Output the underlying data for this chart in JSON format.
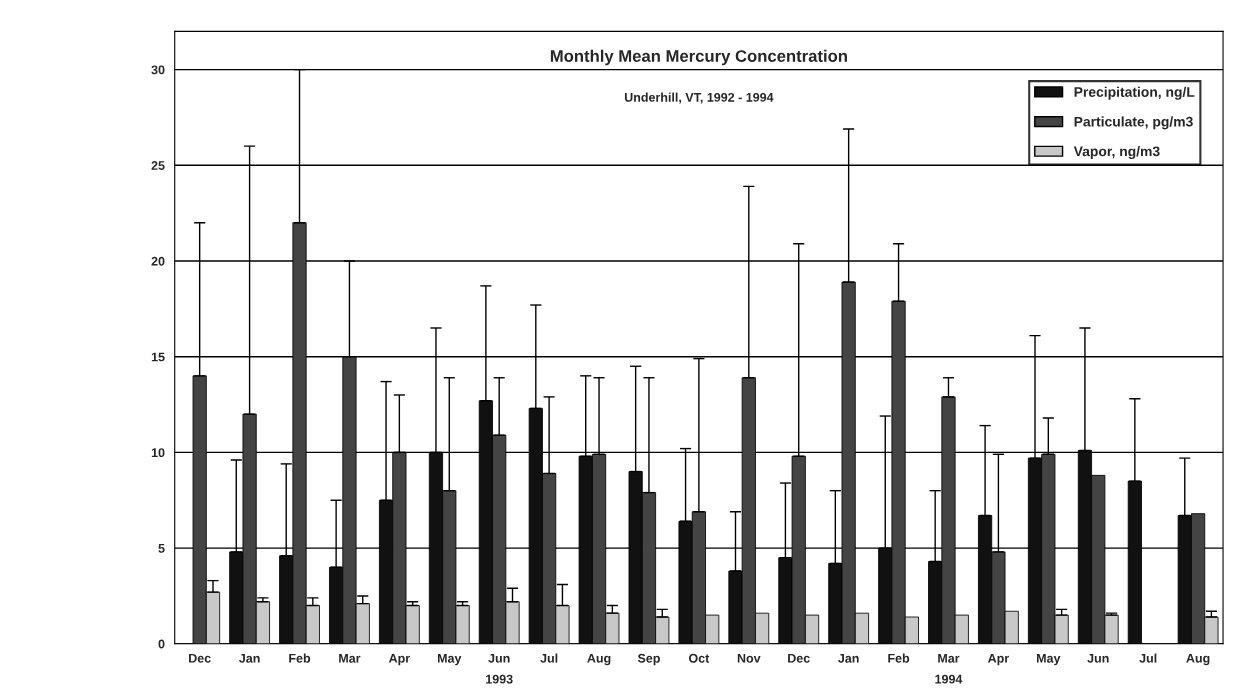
{
  "chart_data": {
    "type": "bar",
    "title": "Monthly Mean Mercury Concentration",
    "subtitle": "Underhill, VT, 1992 - 1994",
    "categories": [
      "Dec",
      "Jan",
      "Feb",
      "Mar",
      "Apr",
      "May",
      "Jun",
      "Jul",
      "Aug",
      "Sep",
      "Oct",
      "Nov",
      "Dec",
      "Jan",
      "Feb",
      "Mar",
      "Apr",
      "May",
      "Jun",
      "Jul",
      "Aug"
    ],
    "series": [
      {
        "name": "Precipitation, ng/L",
        "color": "#111111",
        "values": [
          null,
          4.8,
          4.6,
          4.0,
          7.5,
          10.0,
          12.7,
          12.3,
          9.8,
          9.0,
          6.4,
          3.8,
          4.5,
          4.2,
          5.0,
          4.3,
          6.7,
          9.7,
          10.1,
          8.5,
          6.7
        ],
        "errors": [
          null,
          [
            4.8,
            9.6
          ],
          [
            4.6,
            9.4
          ],
          [
            4.0,
            7.5
          ],
          [
            7.5,
            13.7
          ],
          [
            10.0,
            16.5
          ],
          [
            12.7,
            18.7
          ],
          [
            12.3,
            17.7
          ],
          [
            9.8,
            14.0
          ],
          [
            9.0,
            14.5
          ],
          [
            6.4,
            10.2
          ],
          [
            3.8,
            6.9
          ],
          [
            4.5,
            8.4
          ],
          [
            4.2,
            8.0
          ],
          [
            5.0,
            11.9
          ],
          [
            4.3,
            8.0
          ],
          [
            6.7,
            11.4
          ],
          [
            9.7,
            16.1
          ],
          [
            10.1,
            16.5
          ],
          [
            8.5,
            12.8
          ],
          [
            6.7,
            9.7
          ]
        ]
      },
      {
        "name": "Particulate, pg/m3",
        "color": "#444444",
        "values": [
          14.0,
          12.0,
          22.0,
          15.0,
          10.0,
          8.0,
          10.9,
          8.9,
          9.9,
          7.9,
          6.9,
          13.9,
          9.8,
          18.9,
          17.9,
          12.9,
          4.8,
          9.9,
          8.8,
          null,
          6.8
        ],
        "errors": [
          [
            14.0,
            22.0
          ],
          [
            12.0,
            26.0
          ],
          [
            22.0,
            30.0
          ],
          [
            15.0,
            20.0
          ],
          [
            10.0,
            13.0
          ],
          [
            8.0,
            13.9
          ],
          [
            10.9,
            13.9
          ],
          [
            8.9,
            12.9
          ],
          [
            9.9,
            13.9
          ],
          [
            7.9,
            13.9
          ],
          [
            6.9,
            14.9
          ],
          [
            13.9,
            23.9
          ],
          [
            9.8,
            20.9
          ],
          [
            18.9,
            26.9
          ],
          [
            17.9,
            20.9
          ],
          [
            12.9,
            13.9
          ],
          [
            4.8,
            9.9
          ],
          [
            9.9,
            11.8
          ],
          null,
          null,
          null
        ]
      },
      {
        "name": "Vapor, ng/m3",
        "color": "#c8c8c8",
        "values": [
          2.7,
          2.2,
          2.0,
          2.1,
          2.0,
          2.0,
          2.2,
          2.0,
          1.6,
          1.4,
          1.5,
          1.6,
          1.5,
          1.6,
          1.4,
          1.5,
          1.7,
          1.5,
          1.5,
          null,
          1.4
        ],
        "errors": [
          [
            2.7,
            3.3
          ],
          [
            2.2,
            2.4
          ],
          [
            2.0,
            2.4
          ],
          [
            2.1,
            2.5
          ],
          [
            2.0,
            2.2
          ],
          [
            2.0,
            2.2
          ],
          [
            2.2,
            2.9
          ],
          [
            2.0,
            3.1
          ],
          [
            1.6,
            2.0
          ],
          [
            1.4,
            1.8
          ],
          null,
          null,
          null,
          null,
          null,
          null,
          null,
          [
            1.5,
            1.8
          ],
          [
            1.5,
            1.6
          ],
          null,
          [
            1.4,
            1.7
          ]
        ]
      }
    ],
    "ylim": [
      0,
      32
    ],
    "yticks": [
      0,
      5,
      10,
      15,
      20,
      25,
      30
    ],
    "grid": "y",
    "legend": "top right",
    "annotations": [
      "1993",
      "1994"
    ]
  }
}
